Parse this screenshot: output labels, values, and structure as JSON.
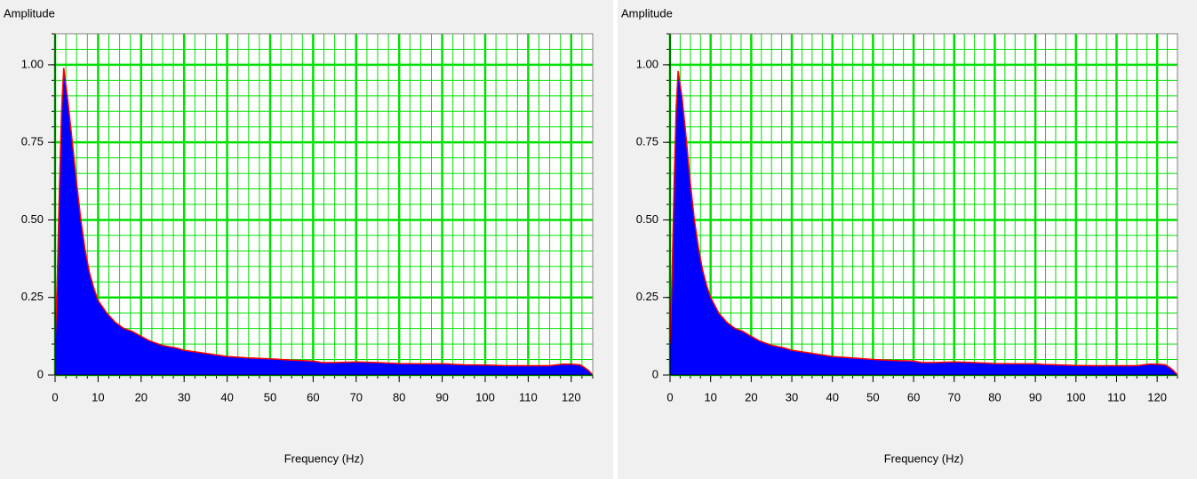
{
  "chart_data": [
    {
      "type": "area",
      "ylabel": "Amplitude",
      "xlabel": "Frequency (Hz)",
      "color": "#0000ff",
      "line_color": "#ff0000",
      "grid": true,
      "grid_color": "#00e000",
      "xlim": [
        0,
        125
      ],
      "ylim": [
        0,
        1.1
      ],
      "xticks": [
        0,
        10,
        20,
        30,
        40,
        50,
        60,
        70,
        80,
        90,
        100,
        110,
        120
      ],
      "yticks": [
        0,
        {
          "value": 0.25,
          "label": "0.25"
        },
        {
          "value": 0.5,
          "label": "0.50"
        },
        {
          "value": 0.75,
          "label": "0.75"
        },
        {
          "value": 1,
          "label": "1.00"
        }
      ],
      "minor_xticks": [
        0,
        2.5,
        5,
        7.5,
        10,
        12.5,
        15,
        17.5,
        20,
        22.5,
        25,
        27.5,
        30,
        32.5,
        35,
        37.5,
        40,
        42.5,
        45,
        47.5,
        50,
        52.5,
        55,
        57.5,
        60,
        62.5,
        65,
        67.5,
        70,
        72.5,
        75,
        77.5,
        80,
        82.5,
        85,
        87.5,
        90,
        92.5,
        95,
        97.5,
        100,
        102.5,
        105,
        107.5,
        110,
        112.5,
        115,
        117.5,
        120,
        122.5,
        125
      ],
      "minor_yticks": [
        0,
        0.05,
        0.1,
        0.15,
        0.2,
        0.25,
        0.3,
        0.35,
        0.4,
        0.45,
        0.5,
        0.55,
        0.6,
        0.65,
        0.7,
        0.75,
        0.8,
        0.85,
        0.9,
        0.95,
        1,
        1.05,
        1.1
      ],
      "x": [
        0,
        0.5,
        1,
        1.5,
        2,
        3,
        4,
        5,
        6,
        7,
        8,
        9,
        10,
        12,
        14,
        16,
        18,
        20,
        22,
        25,
        28,
        30,
        35,
        40,
        45,
        50,
        55,
        60,
        62,
        65,
        70,
        75,
        80,
        85,
        90,
        92,
        95,
        100,
        105,
        110,
        115,
        118,
        120,
        122,
        123,
        124,
        125
      ],
      "values": [
        0.1,
        0.3,
        0.6,
        0.85,
        0.99,
        0.88,
        0.75,
        0.62,
        0.5,
        0.4,
        0.33,
        0.28,
        0.24,
        0.2,
        0.17,
        0.15,
        0.14,
        0.125,
        0.11,
        0.095,
        0.088,
        0.08,
        0.07,
        0.06,
        0.055,
        0.052,
        0.048,
        0.045,
        0.04,
        0.04,
        0.042,
        0.04,
        0.037,
        0.036,
        0.036,
        0.035,
        0.033,
        0.032,
        0.03,
        0.03,
        0.03,
        0.035,
        0.035,
        0.033,
        0.025,
        0.015,
        0
      ]
    },
    {
      "type": "area",
      "ylabel": "Amplitude",
      "xlabel": "Frequency (Hz)",
      "color": "#0000ff",
      "line_color": "#ff0000",
      "grid": true,
      "grid_color": "#00e000",
      "xlim": [
        0,
        125
      ],
      "ylim": [
        0,
        1.1
      ],
      "xticks": [
        0,
        10,
        20,
        30,
        40,
        50,
        60,
        70,
        80,
        90,
        100,
        110,
        120
      ],
      "yticks": [
        0,
        {
          "value": 0.25,
          "label": "0.25"
        },
        {
          "value": 0.5,
          "label": "0.50"
        },
        {
          "value": 0.75,
          "label": "0.75"
        },
        {
          "value": 1,
          "label": "1.00"
        }
      ],
      "minor_xticks": [
        0,
        2.5,
        5,
        7.5,
        10,
        12.5,
        15,
        17.5,
        20,
        22.5,
        25,
        27.5,
        30,
        32.5,
        35,
        37.5,
        40,
        42.5,
        45,
        47.5,
        50,
        52.5,
        55,
        57.5,
        60,
        62.5,
        65,
        67.5,
        70,
        72.5,
        75,
        77.5,
        80,
        82.5,
        85,
        87.5,
        90,
        92.5,
        95,
        97.5,
        100,
        102.5,
        105,
        107.5,
        110,
        112.5,
        115,
        117.5,
        120,
        122.5,
        125
      ],
      "minor_yticks": [
        0,
        0.05,
        0.1,
        0.15,
        0.2,
        0.25,
        0.3,
        0.35,
        0.4,
        0.45,
        0.5,
        0.55,
        0.6,
        0.65,
        0.7,
        0.75,
        0.8,
        0.85,
        0.9,
        0.95,
        1,
        1.05,
        1.1
      ],
      "x": [
        0,
        0.5,
        1,
        1.5,
        2,
        3,
        4,
        5,
        6,
        7,
        8,
        9,
        10,
        12,
        14,
        16,
        18,
        20,
        22,
        25,
        28,
        30,
        35,
        40,
        45,
        50,
        55,
        60,
        62,
        65,
        70,
        75,
        80,
        85,
        90,
        92,
        95,
        100,
        105,
        110,
        115,
        118,
        120,
        122,
        123,
        124,
        125
      ],
      "values": [
        0.1,
        0.32,
        0.62,
        0.86,
        0.98,
        0.89,
        0.76,
        0.62,
        0.5,
        0.41,
        0.34,
        0.29,
        0.25,
        0.2,
        0.17,
        0.15,
        0.14,
        0.125,
        0.11,
        0.096,
        0.088,
        0.08,
        0.07,
        0.06,
        0.055,
        0.05,
        0.047,
        0.045,
        0.04,
        0.04,
        0.042,
        0.04,
        0.037,
        0.036,
        0.036,
        0.034,
        0.033,
        0.031,
        0.03,
        0.03,
        0.03,
        0.035,
        0.035,
        0.033,
        0.025,
        0.015,
        0
      ]
    }
  ]
}
